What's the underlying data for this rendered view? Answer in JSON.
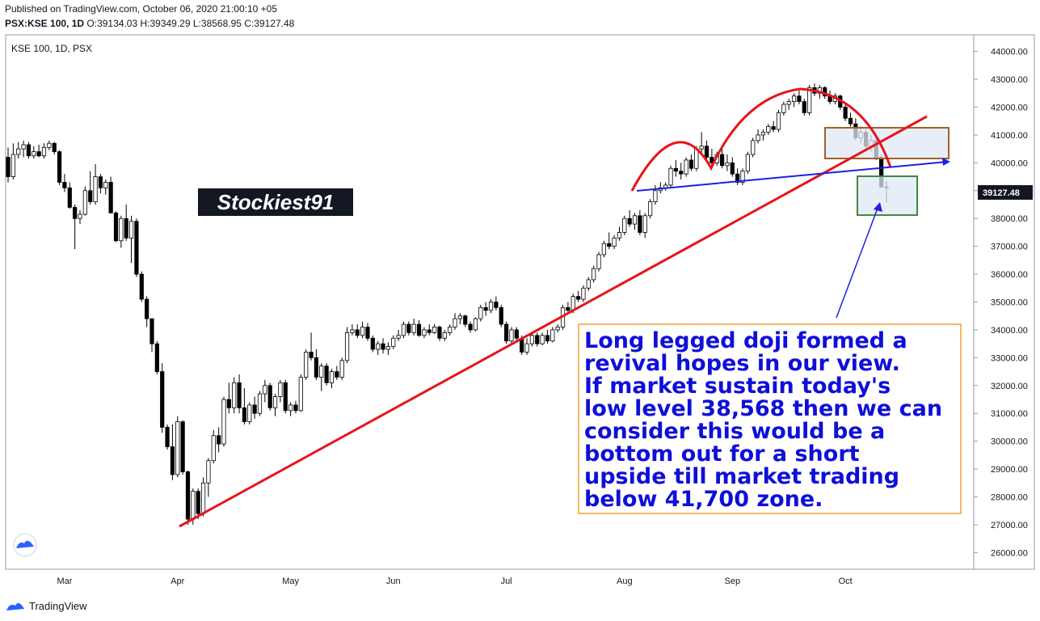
{
  "header": {
    "published_line": "Published on TradingView.com, October 06, 2020 21:00:10 +05",
    "symbol": "PSX:KSE 100, 1D",
    "ohlc": {
      "o_label": "O:",
      "o": "39134.03",
      "h_label": "H:",
      "h": "39349.29",
      "l_label": "L:",
      "l": "38568.95",
      "c_label": "C:",
      "c": "39127.48"
    }
  },
  "footer": {
    "brand": "TradingView"
  },
  "chart_data": {
    "type": "candlestick",
    "title": "KSE 100, 1D, PSX",
    "watermark": "Stockiest91",
    "last_price_label": "39127.48",
    "x_ticks": [
      "Mar",
      "Apr",
      "May",
      "Jun",
      "Jul",
      "Aug",
      "Sep",
      "Oct"
    ],
    "y_ticks": [
      "44000.00",
      "43000.00",
      "42000.00",
      "41000.00",
      "40000.00",
      "39000.00",
      "38000.00",
      "37000.00",
      "36000.00",
      "35000.00",
      "34000.00",
      "33000.00",
      "32000.00",
      "31000.00",
      "30000.00",
      "29000.00",
      "28000.00",
      "27000.00",
      "26000.00"
    ],
    "ylim": [
      25400,
      44600
    ],
    "candles": [
      [
        "Feb-14",
        40200,
        40550,
        39300,
        39500
      ],
      [
        "Feb-17",
        39500,
        40700,
        39400,
        40300
      ],
      [
        "Feb-18",
        40300,
        40750,
        40150,
        40500
      ],
      [
        "Feb-19",
        40500,
        40800,
        40200,
        40650
      ],
      [
        "Feb-20",
        40650,
        40750,
        40150,
        40250
      ],
      [
        "Feb-21",
        40250,
        40600,
        40150,
        40400
      ],
      [
        "Feb-24",
        40400,
        40650,
        40200,
        40250
      ],
      [
        "Feb-25",
        40250,
        40700,
        40150,
        40550
      ],
      [
        "Feb-26",
        40550,
        40800,
        40450,
        40700
      ],
      [
        "Feb-27",
        40700,
        40750,
        40300,
        40400
      ],
      [
        "Feb-28",
        40400,
        40450,
        39200,
        39300
      ],
      [
        "Mar-02",
        39300,
        39600,
        38950,
        39100
      ],
      [
        "Mar-03",
        39100,
        39300,
        38350,
        38400
      ],
      [
        "Mar-04",
        38400,
        38500,
        36900,
        38000
      ],
      [
        "Mar-05",
        38000,
        38300,
        37800,
        38150
      ],
      [
        "Mar-06",
        38150,
        39150,
        38100,
        39000
      ],
      [
        "Mar-09",
        39000,
        39700,
        38500,
        38600
      ],
      [
        "Mar-10",
        38600,
        39950,
        38500,
        39500
      ],
      [
        "Mar-11",
        39500,
        39600,
        38900,
        39100
      ],
      [
        "Mar-12",
        39100,
        39400,
        38850,
        39300
      ],
      [
        "Mar-13",
        39300,
        39500,
        38200,
        38200
      ],
      [
        "Mar-16",
        38200,
        38250,
        37150,
        37200
      ],
      [
        "Mar-17",
        37200,
        38100,
        36950,
        38000
      ],
      [
        "Mar-18",
        38000,
        38500,
        37200,
        37300
      ],
      [
        "Mar-19",
        37300,
        38100,
        36400,
        37900
      ],
      [
        "Mar-20",
        37900,
        38000,
        35900,
        36000
      ],
      [
        "Mar-23",
        36000,
        36100,
        35000,
        35100
      ],
      [
        "Mar-24",
        35100,
        35200,
        34100,
        34400
      ],
      [
        "Mar-25",
        34400,
        34400,
        33200,
        33500
      ],
      [
        "Mar-26",
        33500,
        33600,
        32400,
        32500
      ],
      [
        "Mar-27",
        32500,
        32800,
        30300,
        30500
      ],
      [
        "Mar-30",
        30500,
        30600,
        29700,
        29800
      ],
      [
        "Mar-31",
        29800,
        30600,
        28600,
        28800
      ],
      [
        "Apr-01",
        28800,
        30900,
        28700,
        30700
      ],
      [
        "Apr-02",
        30700,
        30750,
        28800,
        28900
      ],
      [
        "Apr-03",
        28900,
        28950,
        27000,
        27200
      ],
      [
        "Apr-06",
        27200,
        28300,
        27000,
        28200
      ],
      [
        "Apr-07",
        28200,
        28300,
        27200,
        27400
      ],
      [
        "Apr-08",
        27400,
        28700,
        27300,
        28500
      ],
      [
        "Apr-09",
        28500,
        29400,
        28000,
        29300
      ],
      [
        "Apr-10",
        29300,
        30400,
        29200,
        30200
      ],
      [
        "Apr-13",
        30200,
        30500,
        29600,
        29900
      ],
      [
        "Apr-14",
        29900,
        31600,
        29800,
        31500
      ],
      [
        "Apr-15",
        31500,
        32100,
        31000,
        31200
      ],
      [
        "Apr-16",
        31200,
        32300,
        31000,
        32100
      ],
      [
        "Apr-17",
        32100,
        32400,
        31000,
        31200
      ],
      [
        "Apr-20",
        31200,
        31900,
        30600,
        30700
      ],
      [
        "Apr-21",
        30700,
        31400,
        30600,
        31300
      ],
      [
        "Apr-22",
        31300,
        31600,
        30800,
        31000
      ],
      [
        "Apr-23",
        31000,
        31800,
        30900,
        31700
      ],
      [
        "Apr-24",
        31700,
        32200,
        31400,
        32000
      ],
      [
        "Apr-27",
        32000,
        32100,
        31100,
        31200
      ],
      [
        "Apr-28",
        31200,
        31700,
        30900,
        31600
      ],
      [
        "Apr-29",
        31600,
        32200,
        31400,
        32100
      ],
      [
        "Apr-30",
        32100,
        32200,
        31000,
        31100
      ],
      [
        "May-01",
        31100,
        31400,
        30900,
        31300
      ],
      [
        "May-04",
        31300,
        31450,
        31000,
        31100
      ],
      [
        "May-05",
        31100,
        32400,
        31050,
        32300
      ],
      [
        "May-06",
        32300,
        33300,
        32200,
        33200
      ],
      [
        "May-07",
        33200,
        33900,
        32900,
        33000
      ],
      [
        "May-08",
        33000,
        33300,
        32200,
        32300
      ],
      [
        "May-11",
        32300,
        32800,
        31800,
        32700
      ],
      [
        "May-12",
        32700,
        32800,
        32000,
        32100
      ],
      [
        "May-13",
        32100,
        32600,
        31900,
        32500
      ],
      [
        "May-14",
        32500,
        32700,
        32200,
        32300
      ],
      [
        "May-15",
        32300,
        33000,
        32200,
        32900
      ],
      [
        "May-18",
        32900,
        34100,
        32800,
        33900
      ],
      [
        "May-19",
        33900,
        34200,
        33800,
        34000
      ],
      [
        "May-20",
        34000,
        34200,
        33700,
        33800
      ],
      [
        "May-21",
        33800,
        34300,
        33700,
        34100
      ],
      [
        "May-22",
        34100,
        34250,
        33600,
        33700
      ],
      [
        "May-26",
        33700,
        33800,
        33200,
        33300
      ],
      [
        "May-27",
        33300,
        33600,
        33100,
        33500
      ],
      [
        "May-28",
        33500,
        33700,
        33150,
        33300
      ],
      [
        "May-29",
        33300,
        33550,
        33100,
        33400
      ],
      [
        "Jun-01",
        33400,
        33800,
        33300,
        33700
      ],
      [
        "Jun-02",
        33700,
        34000,
        33600,
        33800
      ],
      [
        "Jun-03",
        33800,
        34300,
        33700,
        34200
      ],
      [
        "Jun-04",
        34200,
        34300,
        33800,
        33900
      ],
      [
        "Jun-05",
        33900,
        34400,
        33800,
        34200
      ],
      [
        "Jun-08",
        34200,
        34350,
        33750,
        33800
      ],
      [
        "Jun-09",
        33800,
        34100,
        33700,
        34000
      ],
      [
        "Jun-10",
        34000,
        34200,
        33800,
        33900
      ],
      [
        "Jun-11",
        33900,
        34200,
        33850,
        34100
      ],
      [
        "Jun-12",
        34100,
        34150,
        33600,
        33700
      ],
      [
        "Jun-15",
        33700,
        34000,
        33600,
        33900
      ],
      [
        "Jun-16",
        33900,
        34200,
        33800,
        34100
      ],
      [
        "Jun-17",
        34100,
        34600,
        34000,
        34400
      ],
      [
        "Jun-18",
        34400,
        34600,
        34200,
        34500
      ],
      [
        "Jun-19",
        34500,
        34550,
        34100,
        34200
      ],
      [
        "Jun-22",
        34200,
        34300,
        33900,
        34000
      ],
      [
        "Jun-23",
        34000,
        34450,
        33950,
        34400
      ],
      [
        "Jun-24",
        34400,
        34900,
        34300,
        34800
      ],
      [
        "Jun-25",
        34800,
        35000,
        34500,
        34700
      ],
      [
        "Jun-26",
        34700,
        35100,
        34600,
        35000
      ],
      [
        "Jun-29",
        35000,
        35200,
        34700,
        34800
      ],
      [
        "Jun-30",
        34800,
        34900,
        34100,
        34200
      ],
      [
        "Jul-01",
        34200,
        34300,
        33500,
        33600
      ],
      [
        "Jul-02",
        33600,
        34100,
        33500,
        34000
      ],
      [
        "Jul-03",
        34000,
        34100,
        33600,
        33700
      ],
      [
        "Jul-06",
        33700,
        33800,
        33100,
        33200
      ],
      [
        "Jul-07",
        33200,
        33700,
        33100,
        33500
      ],
      [
        "Jul-08",
        33500,
        33900,
        33400,
        33800
      ],
      [
        "Jul-09",
        33800,
        33900,
        33400,
        33500
      ],
      [
        "Jul-10",
        33500,
        33900,
        33450,
        33800
      ],
      [
        "Jul-13",
        33800,
        34000,
        33500,
        33600
      ],
      [
        "Jul-14",
        33600,
        34100,
        33550,
        34000
      ],
      [
        "Jul-15",
        34000,
        34200,
        33900,
        34100
      ],
      [
        "Jul-16",
        34100,
        34900,
        34000,
        34800
      ],
      [
        "Jul-17",
        34800,
        35000,
        34600,
        34700
      ],
      [
        "Jul-20",
        34700,
        35300,
        34600,
        35200
      ],
      [
        "Jul-21",
        35200,
        35400,
        35000,
        35100
      ],
      [
        "Jul-22",
        35100,
        35600,
        35000,
        35500
      ],
      [
        "Jul-23",
        35500,
        35900,
        35400,
        35800
      ],
      [
        "Jul-24",
        35800,
        36300,
        35700,
        36200
      ],
      [
        "Jul-27",
        36200,
        36800,
        36100,
        36700
      ],
      [
        "Jul-28",
        36700,
        37200,
        36600,
        37100
      ],
      [
        "Jul-29",
        37100,
        37500,
        36900,
        37000
      ],
      [
        "Jul-30",
        37000,
        37400,
        36900,
        37300
      ],
      [
        "Jul-31",
        37300,
        37700,
        37200,
        37500
      ],
      [
        "Aug-03",
        37500,
        38100,
        37400,
        38000
      ],
      [
        "Aug-04",
        38000,
        38300,
        37700,
        37800
      ],
      [
        "Aug-05",
        37800,
        38200,
        37600,
        38100
      ],
      [
        "Aug-06",
        38100,
        38300,
        37400,
        37500
      ],
      [
        "Aug-07",
        37500,
        38200,
        37300,
        38100
      ],
      [
        "Aug-10",
        38100,
        38700,
        38000,
        38600
      ],
      [
        "Aug-11",
        38600,
        39200,
        38500,
        39000
      ],
      [
        "Aug-12",
        39000,
        39300,
        38900,
        39100
      ],
      [
        "Aug-13",
        39100,
        39300,
        39000,
        39200
      ],
      [
        "Aug-14",
        39200,
        39900,
        39100,
        39800
      ],
      [
        "Aug-17",
        39800,
        40100,
        39500,
        39700
      ],
      [
        "Aug-18",
        39700,
        40000,
        39400,
        39600
      ],
      [
        "Aug-19",
        39600,
        40200,
        39500,
        40100
      ],
      [
        "Aug-20",
        40100,
        40300,
        39700,
        39800
      ],
      [
        "Aug-21",
        39800,
        40600,
        39700,
        40500
      ],
      [
        "Aug-24",
        40500,
        41100,
        40300,
        40600
      ],
      [
        "Aug-25",
        40600,
        40800,
        40100,
        40200
      ],
      [
        "Aug-26",
        40200,
        40500,
        39900,
        40000
      ],
      [
        "Aug-27",
        40000,
        40400,
        39900,
        40300
      ],
      [
        "Aug-28",
        40300,
        40500,
        39800,
        39900
      ],
      [
        "Aug-31",
        39900,
        40300,
        39700,
        40000
      ],
      [
        "Sep-01",
        40000,
        40200,
        39500,
        39600
      ],
      [
        "Sep-02",
        39600,
        39800,
        39200,
        39300
      ],
      [
        "Sep-03",
        39300,
        39800,
        39200,
        39700
      ],
      [
        "Sep-04",
        39700,
        40400,
        39600,
        40300
      ],
      [
        "Sep-07",
        40300,
        40900,
        40200,
        40800
      ],
      [
        "Sep-08",
        40800,
        41200,
        40700,
        41000
      ],
      [
        "Sep-09",
        41000,
        41200,
        40800,
        41100
      ],
      [
        "Sep-10",
        41100,
        41400,
        41000,
        41300
      ],
      [
        "Sep-11",
        41300,
        41500,
        41100,
        41200
      ],
      [
        "Sep-14",
        41200,
        41900,
        41100,
        41800
      ],
      [
        "Sep-15",
        41800,
        42200,
        41700,
        42100
      ],
      [
        "Sep-16",
        42100,
        42300,
        41900,
        42200
      ],
      [
        "Sep-17",
        42200,
        42500,
        42000,
        42400
      ],
      [
        "Sep-18",
        42400,
        42600,
        42100,
        42200
      ],
      [
        "Sep-21",
        42200,
        42300,
        41700,
        41800
      ],
      [
        "Sep-22",
        41800,
        42800,
        41700,
        42700
      ],
      [
        "Sep-23",
        42700,
        42850,
        42400,
        42500
      ],
      [
        "Sep-24",
        42500,
        42800,
        42300,
        42700
      ],
      [
        "Sep-25",
        42700,
        42750,
        42300,
        42400
      ],
      [
        "Sep-28",
        42400,
        42600,
        42100,
        42200
      ],
      [
        "Sep-29",
        42200,
        42500,
        42100,
        42400
      ],
      [
        "Sep-30",
        42400,
        42450,
        41900,
        42000
      ],
      [
        "Oct-01",
        42000,
        42100,
        41500,
        41600
      ],
      [
        "Oct-02",
        41600,
        41800,
        41300,
        41400
      ],
      [
        "Oct-05",
        41400,
        41600,
        40800,
        40900
      ],
      [
        "Oct-06",
        40900,
        41300,
        40700,
        41100
      ],
      [
        "Oct-07",
        41100,
        41200,
        40500,
        40600
      ],
      [
        "Oct-08",
        40600,
        41000,
        40400,
        40800
      ],
      [
        "Oct-09",
        40800,
        40900,
        40100,
        40200
      ],
      [
        "Oct-12",
        40200,
        40300,
        39100,
        39134
      ],
      [
        "Oct-13",
        39134,
        39349,
        38569,
        39127
      ]
    ],
    "annotations": {
      "note_text": "Long legged doji formed a revival hopes in our view. If market sustain today's low level 38,568 then we can consider this would be a bottom out for a short upside till market trading below 41,700 zone.",
      "trendline_color": "#e8141b",
      "neckline_color": "#1e1ee6",
      "note_text_color": "#0f0fd8",
      "resistance_box_color": "#a0612a",
      "support_box_color": "#3f8a3f"
    }
  }
}
